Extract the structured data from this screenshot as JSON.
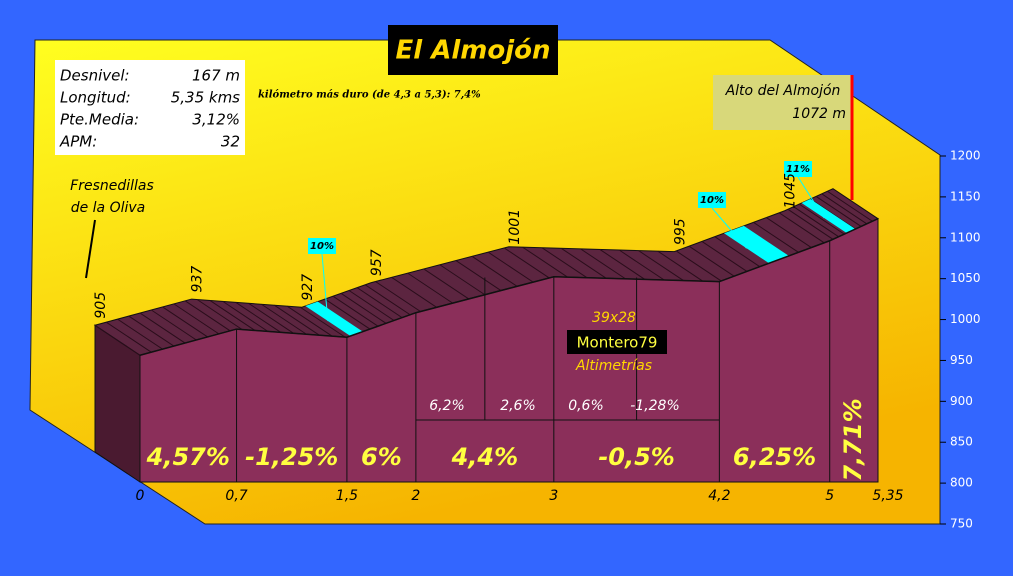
{
  "chart_data": {
    "type": "profile",
    "title": "El Almojón",
    "stats": [
      {
        "label": "Desnivel:",
        "value": "167 m"
      },
      {
        "label": "Longitud:",
        "value": "5,35 kms"
      },
      {
        "label": "Pte.Media:",
        "value": "3,12%"
      },
      {
        "label": "APM:",
        "value": "32"
      }
    ],
    "note": "kilómetro más duro (de 4,3 a 5,3): 7,4%",
    "start_label": [
      "Fresnedillas",
      "de la Oliva"
    ],
    "summit_label": [
      "Alto del Almojón",
      "1072 m"
    ],
    "x": [
      0,
      0.7,
      1.5,
      2,
      3,
      4.2,
      5,
      5.35
    ],
    "values": [
      905,
      937,
      927,
      957,
      1001,
      995,
      1045,
      1072
    ],
    "xticks": [
      0,
      {
        "value": 0.7,
        "label": "0,7"
      },
      {
        "value": 1.5,
        "label": "1,5"
      },
      2,
      3,
      {
        "value": 4.2,
        "label": "4,2"
      },
      5,
      {
        "value": 5.35,
        "label": "5,35"
      }
    ],
    "ylim": [
      750,
      1200
    ],
    "yticks": [
      750,
      800,
      850,
      900,
      950,
      1000,
      1050,
      1100,
      1150,
      1200
    ],
    "grade_labels": [
      "4,57%",
      "-1,25%",
      "6%",
      "4,4%",
      "-0,5%",
      "6,25%",
      "7,71%"
    ],
    "sub_grade_labels": [
      "6,2%",
      "2,6%",
      "0,6%",
      "-1,28%"
    ],
    "steep_labels": [
      "10%",
      "10%",
      "11%"
    ],
    "credit": [
      "39x28",
      "Montero79",
      "Altimetrías"
    ],
    "color": "#8b2f5a"
  }
}
